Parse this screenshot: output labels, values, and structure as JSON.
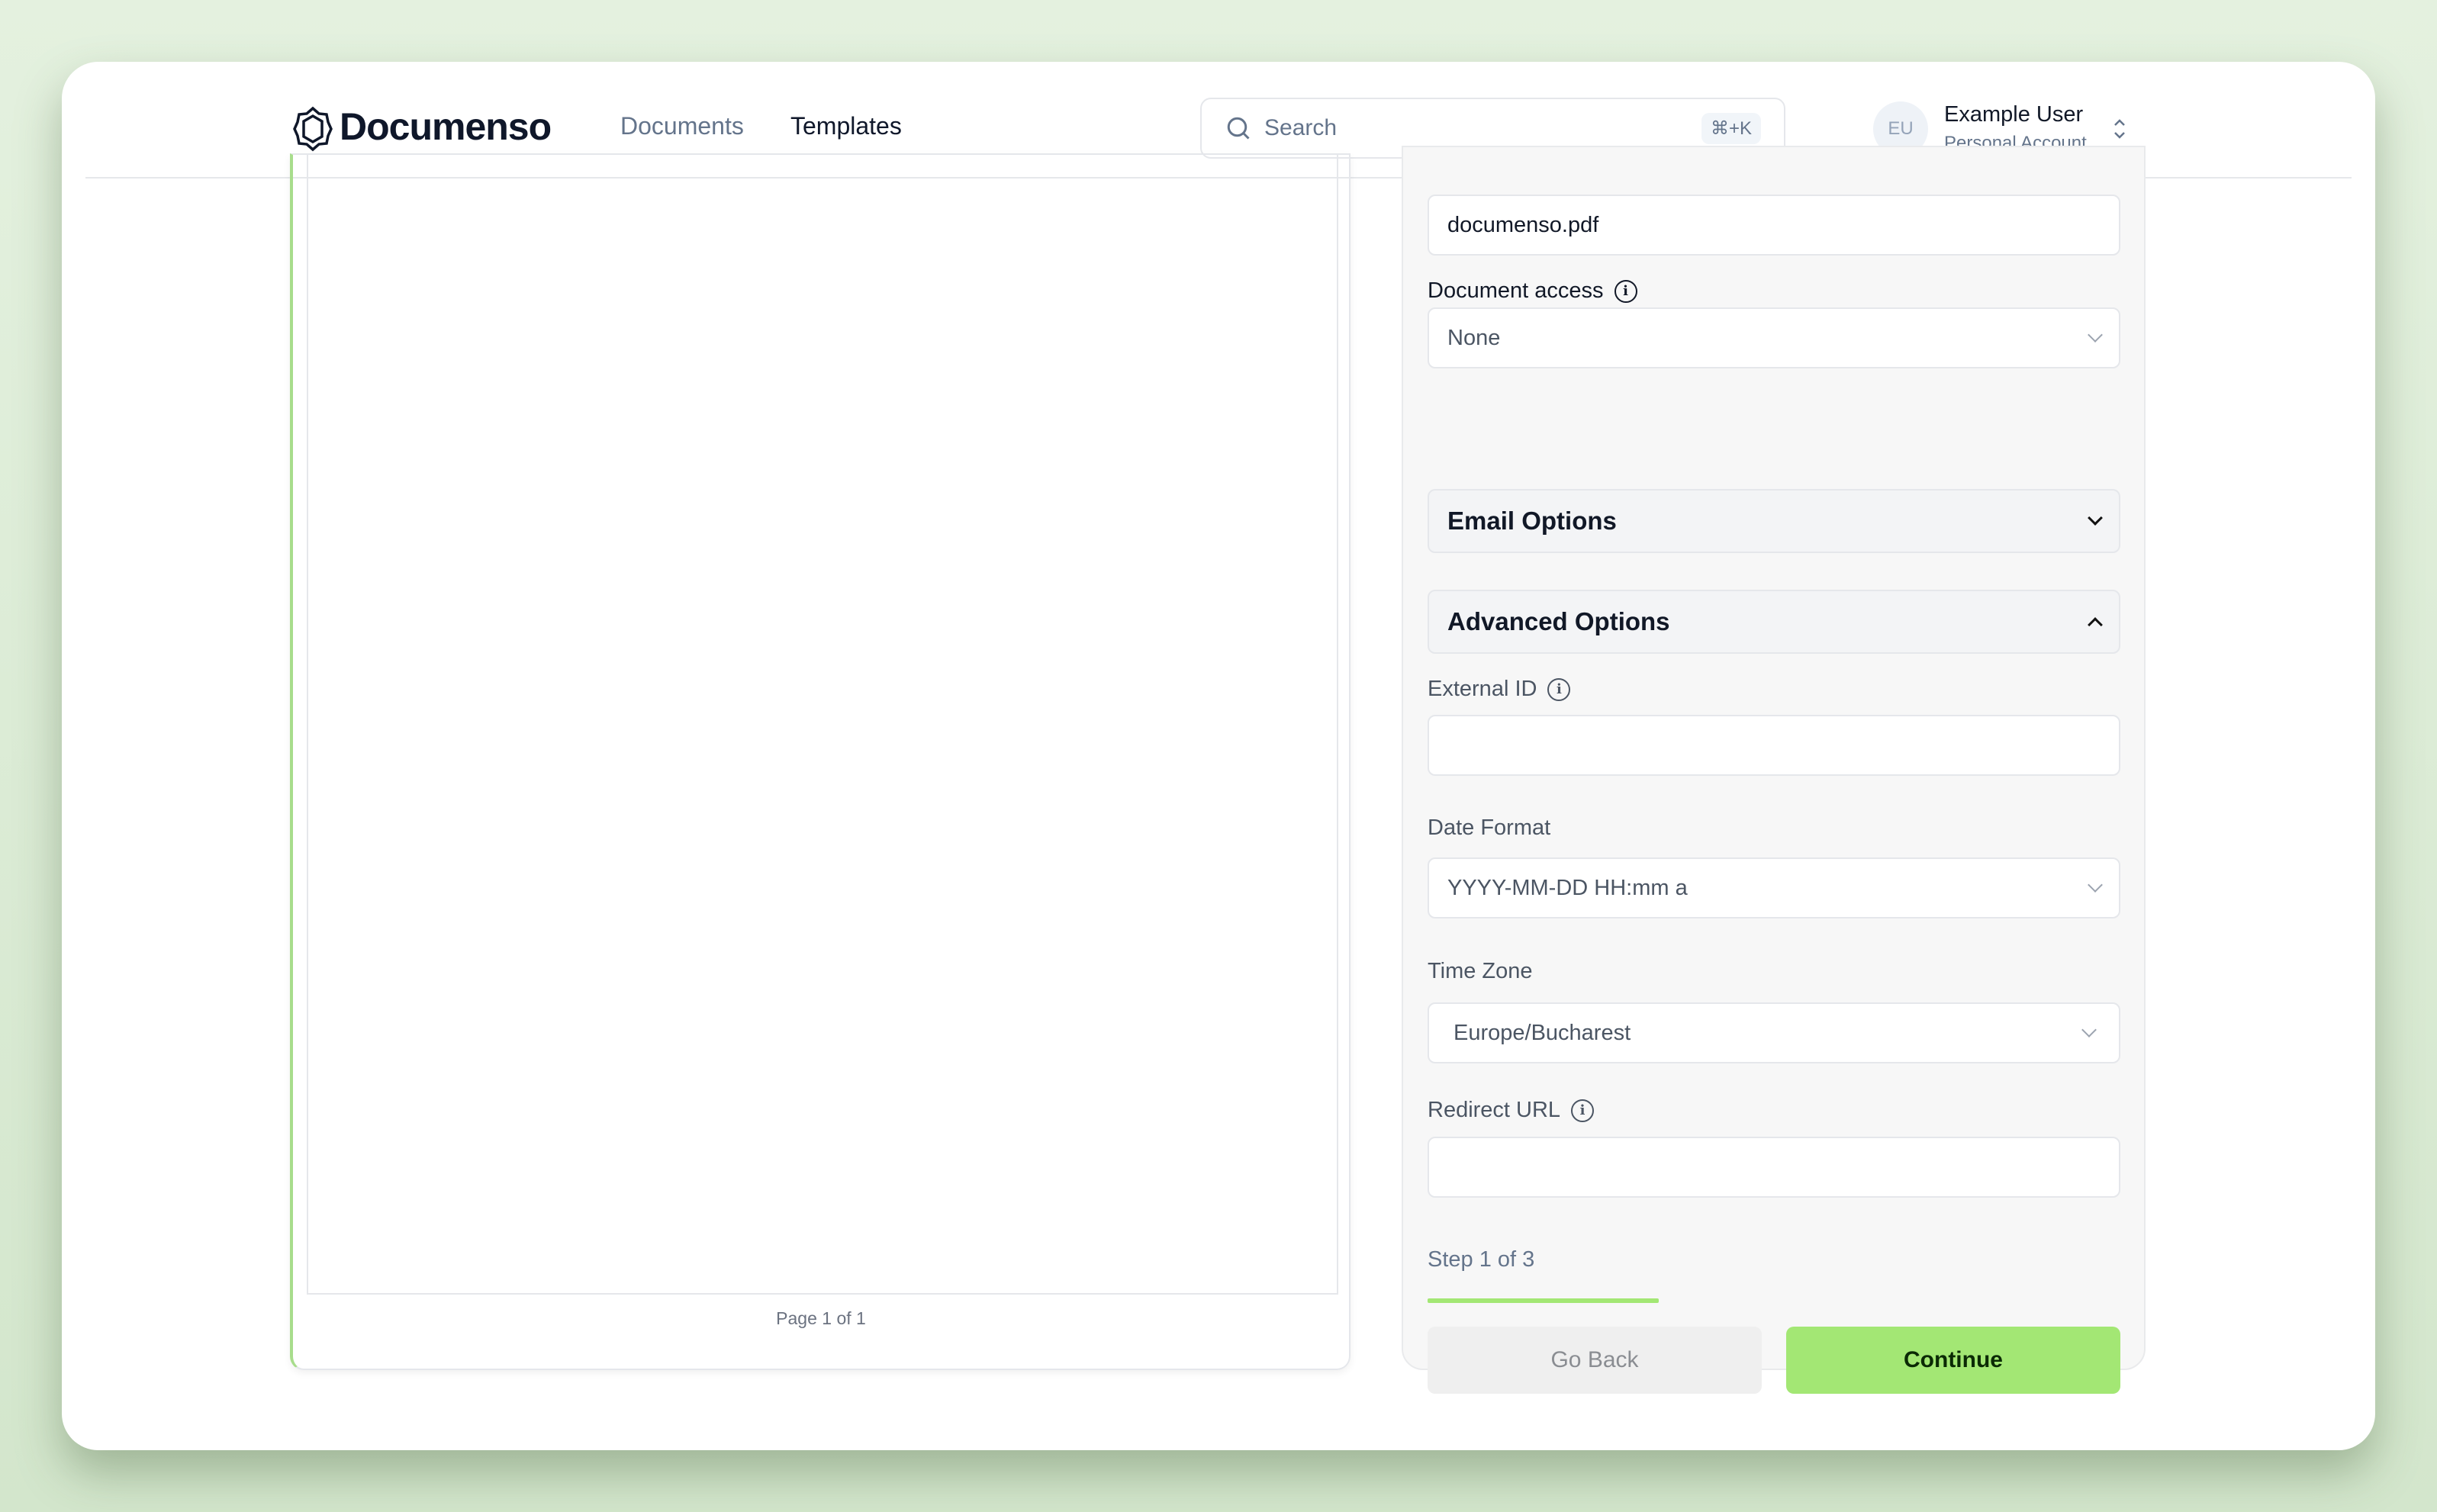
{
  "header": {
    "brand": "Documenso",
    "nav": [
      {
        "label": "Documents",
        "active": false
      },
      {
        "label": "Templates",
        "active": true
      }
    ],
    "search": {
      "placeholder": "Search",
      "shortcut": "⌘+K"
    },
    "user": {
      "initials": "EU",
      "name": "Example User",
      "account": "Personal Account"
    }
  },
  "viewer": {
    "page_label": "Page 1 of 1"
  },
  "form": {
    "title_value": "documenso.pdf",
    "document_access": {
      "label": "Document access",
      "value": "None"
    },
    "email_options": "Email Options",
    "advanced_options": "Advanced Options",
    "external_id": {
      "label": "External ID",
      "value": ""
    },
    "date_format": {
      "label": "Date Format",
      "value": "YYYY-MM-DD HH:mm a"
    },
    "time_zone": {
      "label": "Time Zone",
      "value": "Europe/Bucharest"
    },
    "redirect_url": {
      "label": "Redirect URL",
      "value": ""
    },
    "step": {
      "label": "Step 1 of 3",
      "progress": 0.3333
    },
    "go_back": "Go Back",
    "continue": "Continue"
  },
  "colors": {
    "accent": "#a3e774",
    "progress": "#a3e774"
  }
}
